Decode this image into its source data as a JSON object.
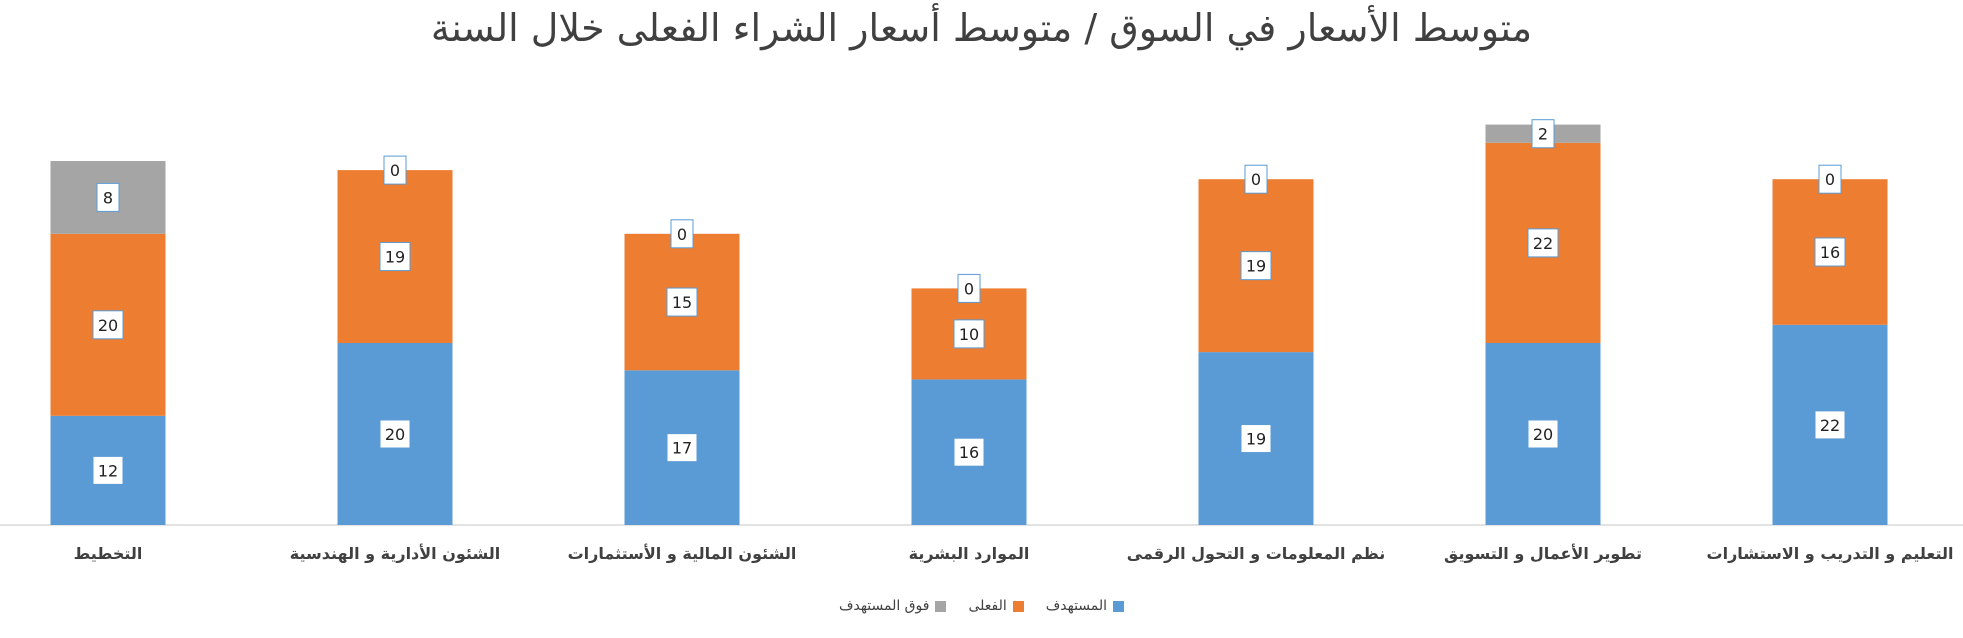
{
  "chart_data": {
    "type": "bar",
    "stacked": true,
    "title": "متوسط الأسعار في السوق / متوسط أسعار الشراء الفعلى خلال السنة",
    "xlabel": "",
    "ylabel": "",
    "ylim": [
      0,
      45
    ],
    "grid": false,
    "legend_position": "bottom",
    "categories": [
      "التخطيط",
      "الشئون الأدارية و الهندسية",
      "الشئون المالية و الأستثمارات",
      "الموارد البشرية",
      "نظم المعلومات و التحول الرقمى",
      "تطوير الأعمال و التسويق",
      "التعليم و التدريب و الاستشارات"
    ],
    "series": [
      {
        "name": "المستهدف",
        "color": "#5B9BD5",
        "values": [
          12,
          20,
          17,
          16,
          19,
          20,
          22
        ]
      },
      {
        "name": "الفعلى",
        "color": "#ED7D31",
        "values": [
          20,
          19,
          15,
          10,
          19,
          22,
          16
        ]
      },
      {
        "name": "فوق المستهدف",
        "color": "#A5A5A5",
        "values": [
          8,
          0,
          0,
          0,
          0,
          2,
          0
        ]
      }
    ]
  }
}
